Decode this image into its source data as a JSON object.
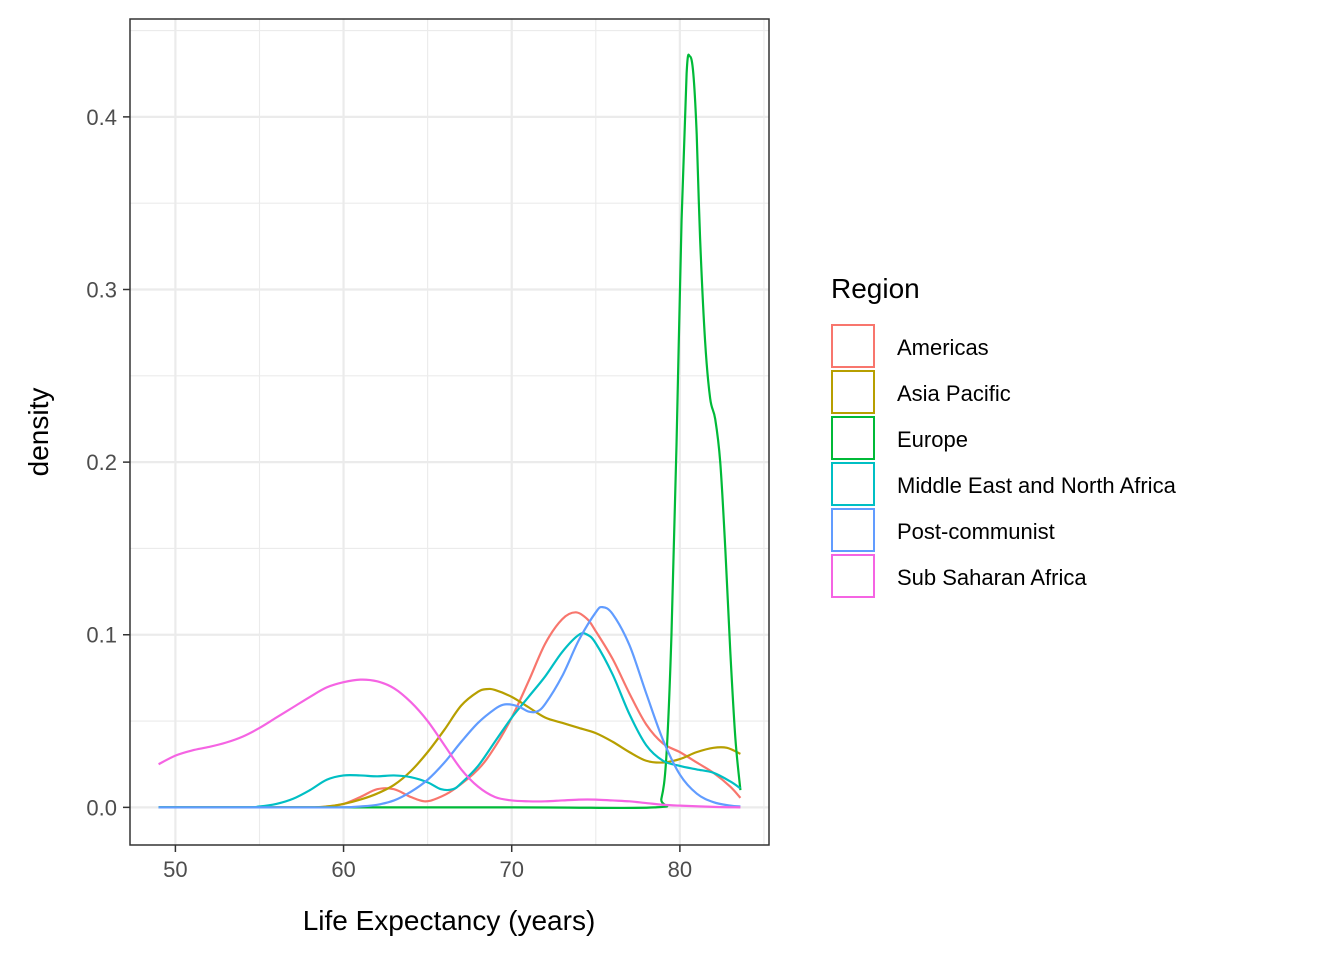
{
  "chart_data": {
    "type": "line",
    "title": "",
    "xlabel": "Life Expectancy (years)",
    "ylabel": "density",
    "xlim": [
      47.3,
      85.3
    ],
    "ylim": [
      -0.0218,
      0.4567
    ],
    "x_ticks": [
      50,
      60,
      70,
      80
    ],
    "y_ticks": [
      0.0,
      0.1,
      0.2,
      0.3,
      0.4
    ],
    "x_tick_labels": [
      "50",
      "60",
      "70",
      "80"
    ],
    "y_tick_labels": [
      "0.0",
      "0.1",
      "0.2",
      "0.3",
      "0.4"
    ],
    "grid": true,
    "legend": {
      "title": "Region",
      "position": "right"
    },
    "series": [
      {
        "name": "Americas",
        "color": "#F8766D",
        "points": [
          [
            49,
            0
          ],
          [
            54,
            0
          ],
          [
            58,
            0
          ],
          [
            59,
            0.0005
          ],
          [
            60,
            0.002
          ],
          [
            61,
            0.006
          ],
          [
            62,
            0.0105
          ],
          [
            63,
            0.0105
          ],
          [
            64,
            0.006
          ],
          [
            64.8,
            0.0035
          ],
          [
            65.5,
            0.005
          ],
          [
            66.5,
            0.01
          ],
          [
            68,
            0.022
          ],
          [
            69,
            0.035
          ],
          [
            70,
            0.052
          ],
          [
            71,
            0.073
          ],
          [
            72,
            0.095
          ],
          [
            73,
            0.109
          ],
          [
            73.8,
            0.113
          ],
          [
            74.5,
            0.109
          ],
          [
            75,
            0.102
          ],
          [
            76,
            0.086
          ],
          [
            77,
            0.066
          ],
          [
            78,
            0.048
          ],
          [
            79,
            0.037
          ],
          [
            80,
            0.032
          ],
          [
            81,
            0.026
          ],
          [
            82,
            0.02
          ],
          [
            83,
            0.012
          ],
          [
            83.6,
            0.0055
          ]
        ]
      },
      {
        "name": "Asia Pacific",
        "color": "#B79F00",
        "points": [
          [
            49,
            0
          ],
          [
            55,
            0
          ],
          [
            58,
            0
          ],
          [
            59,
            0.0005
          ],
          [
            60,
            0.002
          ],
          [
            61,
            0.0045
          ],
          [
            62,
            0.008
          ],
          [
            63,
            0.013
          ],
          [
            64,
            0.021
          ],
          [
            65,
            0.032
          ],
          [
            66,
            0.045
          ],
          [
            67,
            0.059
          ],
          [
            68,
            0.067
          ],
          [
            68.5,
            0.0685
          ],
          [
            69,
            0.068
          ],
          [
            70,
            0.064
          ],
          [
            71,
            0.058
          ],
          [
            72,
            0.052
          ],
          [
            73,
            0.049
          ],
          [
            74,
            0.046
          ],
          [
            75,
            0.043
          ],
          [
            76,
            0.038
          ],
          [
            77,
            0.032
          ],
          [
            78,
            0.027
          ],
          [
            79,
            0.026
          ],
          [
            80,
            0.028
          ],
          [
            81,
            0.032
          ],
          [
            82,
            0.0345
          ],
          [
            82.8,
            0.0345
          ],
          [
            83.6,
            0.031
          ]
        ]
      },
      {
        "name": "Europe",
        "color": "#00BA38",
        "points": [
          [
            49,
            0
          ],
          [
            70,
            0
          ],
          [
            78.5,
            0
          ],
          [
            78.9,
            0.005
          ],
          [
            79.2,
            0.03
          ],
          [
            79.5,
            0.1
          ],
          [
            79.8,
            0.21
          ],
          [
            80.1,
            0.34
          ],
          [
            80.4,
            0.425
          ],
          [
            80.6,
            0.435
          ],
          [
            80.8,
            0.425
          ],
          [
            81,
            0.39
          ],
          [
            81.2,
            0.33
          ],
          [
            81.5,
            0.27
          ],
          [
            81.8,
            0.237
          ],
          [
            82.1,
            0.225
          ],
          [
            82.4,
            0.2
          ],
          [
            82.7,
            0.15
          ],
          [
            83,
            0.09
          ],
          [
            83.3,
            0.04
          ],
          [
            83.6,
            0.01
          ]
        ]
      },
      {
        "name": "Middle East and North Africa",
        "color": "#00BFC4",
        "points": [
          [
            49,
            0
          ],
          [
            54,
            0
          ],
          [
            55,
            0.0005
          ],
          [
            56,
            0.002
          ],
          [
            57,
            0.005
          ],
          [
            58,
            0.01
          ],
          [
            59,
            0.016
          ],
          [
            60,
            0.0185
          ],
          [
            61,
            0.0185
          ],
          [
            62,
            0.018
          ],
          [
            63,
            0.0185
          ],
          [
            64,
            0.0175
          ],
          [
            65,
            0.0145
          ],
          [
            65.8,
            0.0105
          ],
          [
            66.5,
            0.0105
          ],
          [
            67,
            0.014
          ],
          [
            68,
            0.024
          ],
          [
            69,
            0.038
          ],
          [
            70,
            0.052
          ],
          [
            71,
            0.064
          ],
          [
            72,
            0.076
          ],
          [
            73,
            0.09
          ],
          [
            74,
            0.1
          ],
          [
            74.5,
            0.1
          ],
          [
            75,
            0.095
          ],
          [
            76,
            0.077
          ],
          [
            77,
            0.054
          ],
          [
            78,
            0.036
          ],
          [
            79,
            0.027
          ],
          [
            80,
            0.024
          ],
          [
            81,
            0.022
          ],
          [
            82,
            0.02
          ],
          [
            83,
            0.015
          ],
          [
            83.6,
            0.011
          ]
        ]
      },
      {
        "name": "Post-communist",
        "color": "#619CFF",
        "points": [
          [
            49,
            0
          ],
          [
            58,
            0
          ],
          [
            60,
            0
          ],
          [
            61,
            0.0005
          ],
          [
            62,
            0.0015
          ],
          [
            63,
            0.004
          ],
          [
            64,
            0.009
          ],
          [
            65,
            0.016
          ],
          [
            66,
            0.026
          ],
          [
            67,
            0.038
          ],
          [
            68,
            0.049
          ],
          [
            69,
            0.057
          ],
          [
            69.5,
            0.0595
          ],
          [
            70,
            0.0595
          ],
          [
            70.5,
            0.058
          ],
          [
            71,
            0.0555
          ],
          [
            71.5,
            0.0555
          ],
          [
            72,
            0.06
          ],
          [
            73,
            0.076
          ],
          [
            74,
            0.097
          ],
          [
            75,
            0.113
          ],
          [
            75.4,
            0.116
          ],
          [
            76,
            0.112
          ],
          [
            77,
            0.094
          ],
          [
            78,
            0.066
          ],
          [
            79,
            0.039
          ],
          [
            80,
            0.019
          ],
          [
            81,
            0.008
          ],
          [
            82,
            0.003
          ],
          [
            83,
            0.001
          ],
          [
            83.6,
            0.0005
          ]
        ]
      },
      {
        "name": "Sub Saharan Africa",
        "color": "#F564E3",
        "points": [
          [
            49,
            0.025
          ],
          [
            50,
            0.03
          ],
          [
            51,
            0.033
          ],
          [
            52,
            0.035
          ],
          [
            53,
            0.0375
          ],
          [
            54,
            0.041
          ],
          [
            55,
            0.046
          ],
          [
            56,
            0.052
          ],
          [
            57,
            0.058
          ],
          [
            58,
            0.064
          ],
          [
            59,
            0.0695
          ],
          [
            60,
            0.0725
          ],
          [
            61,
            0.074
          ],
          [
            62,
            0.073
          ],
          [
            63,
            0.069
          ],
          [
            64,
            0.061
          ],
          [
            65,
            0.05
          ],
          [
            66,
            0.036
          ],
          [
            67,
            0.022
          ],
          [
            68,
            0.012
          ],
          [
            69,
            0.006
          ],
          [
            70,
            0.004
          ],
          [
            71,
            0.0035
          ],
          [
            72,
            0.0035
          ],
          [
            73,
            0.004
          ],
          [
            74,
            0.0045
          ],
          [
            75,
            0.0045
          ],
          [
            76,
            0.004
          ],
          [
            77,
            0.0035
          ],
          [
            78,
            0.0025
          ],
          [
            79,
            0.0015
          ],
          [
            80,
            0.001
          ],
          [
            82,
            0.0003
          ],
          [
            83.6,
            0
          ]
        ]
      }
    ]
  }
}
